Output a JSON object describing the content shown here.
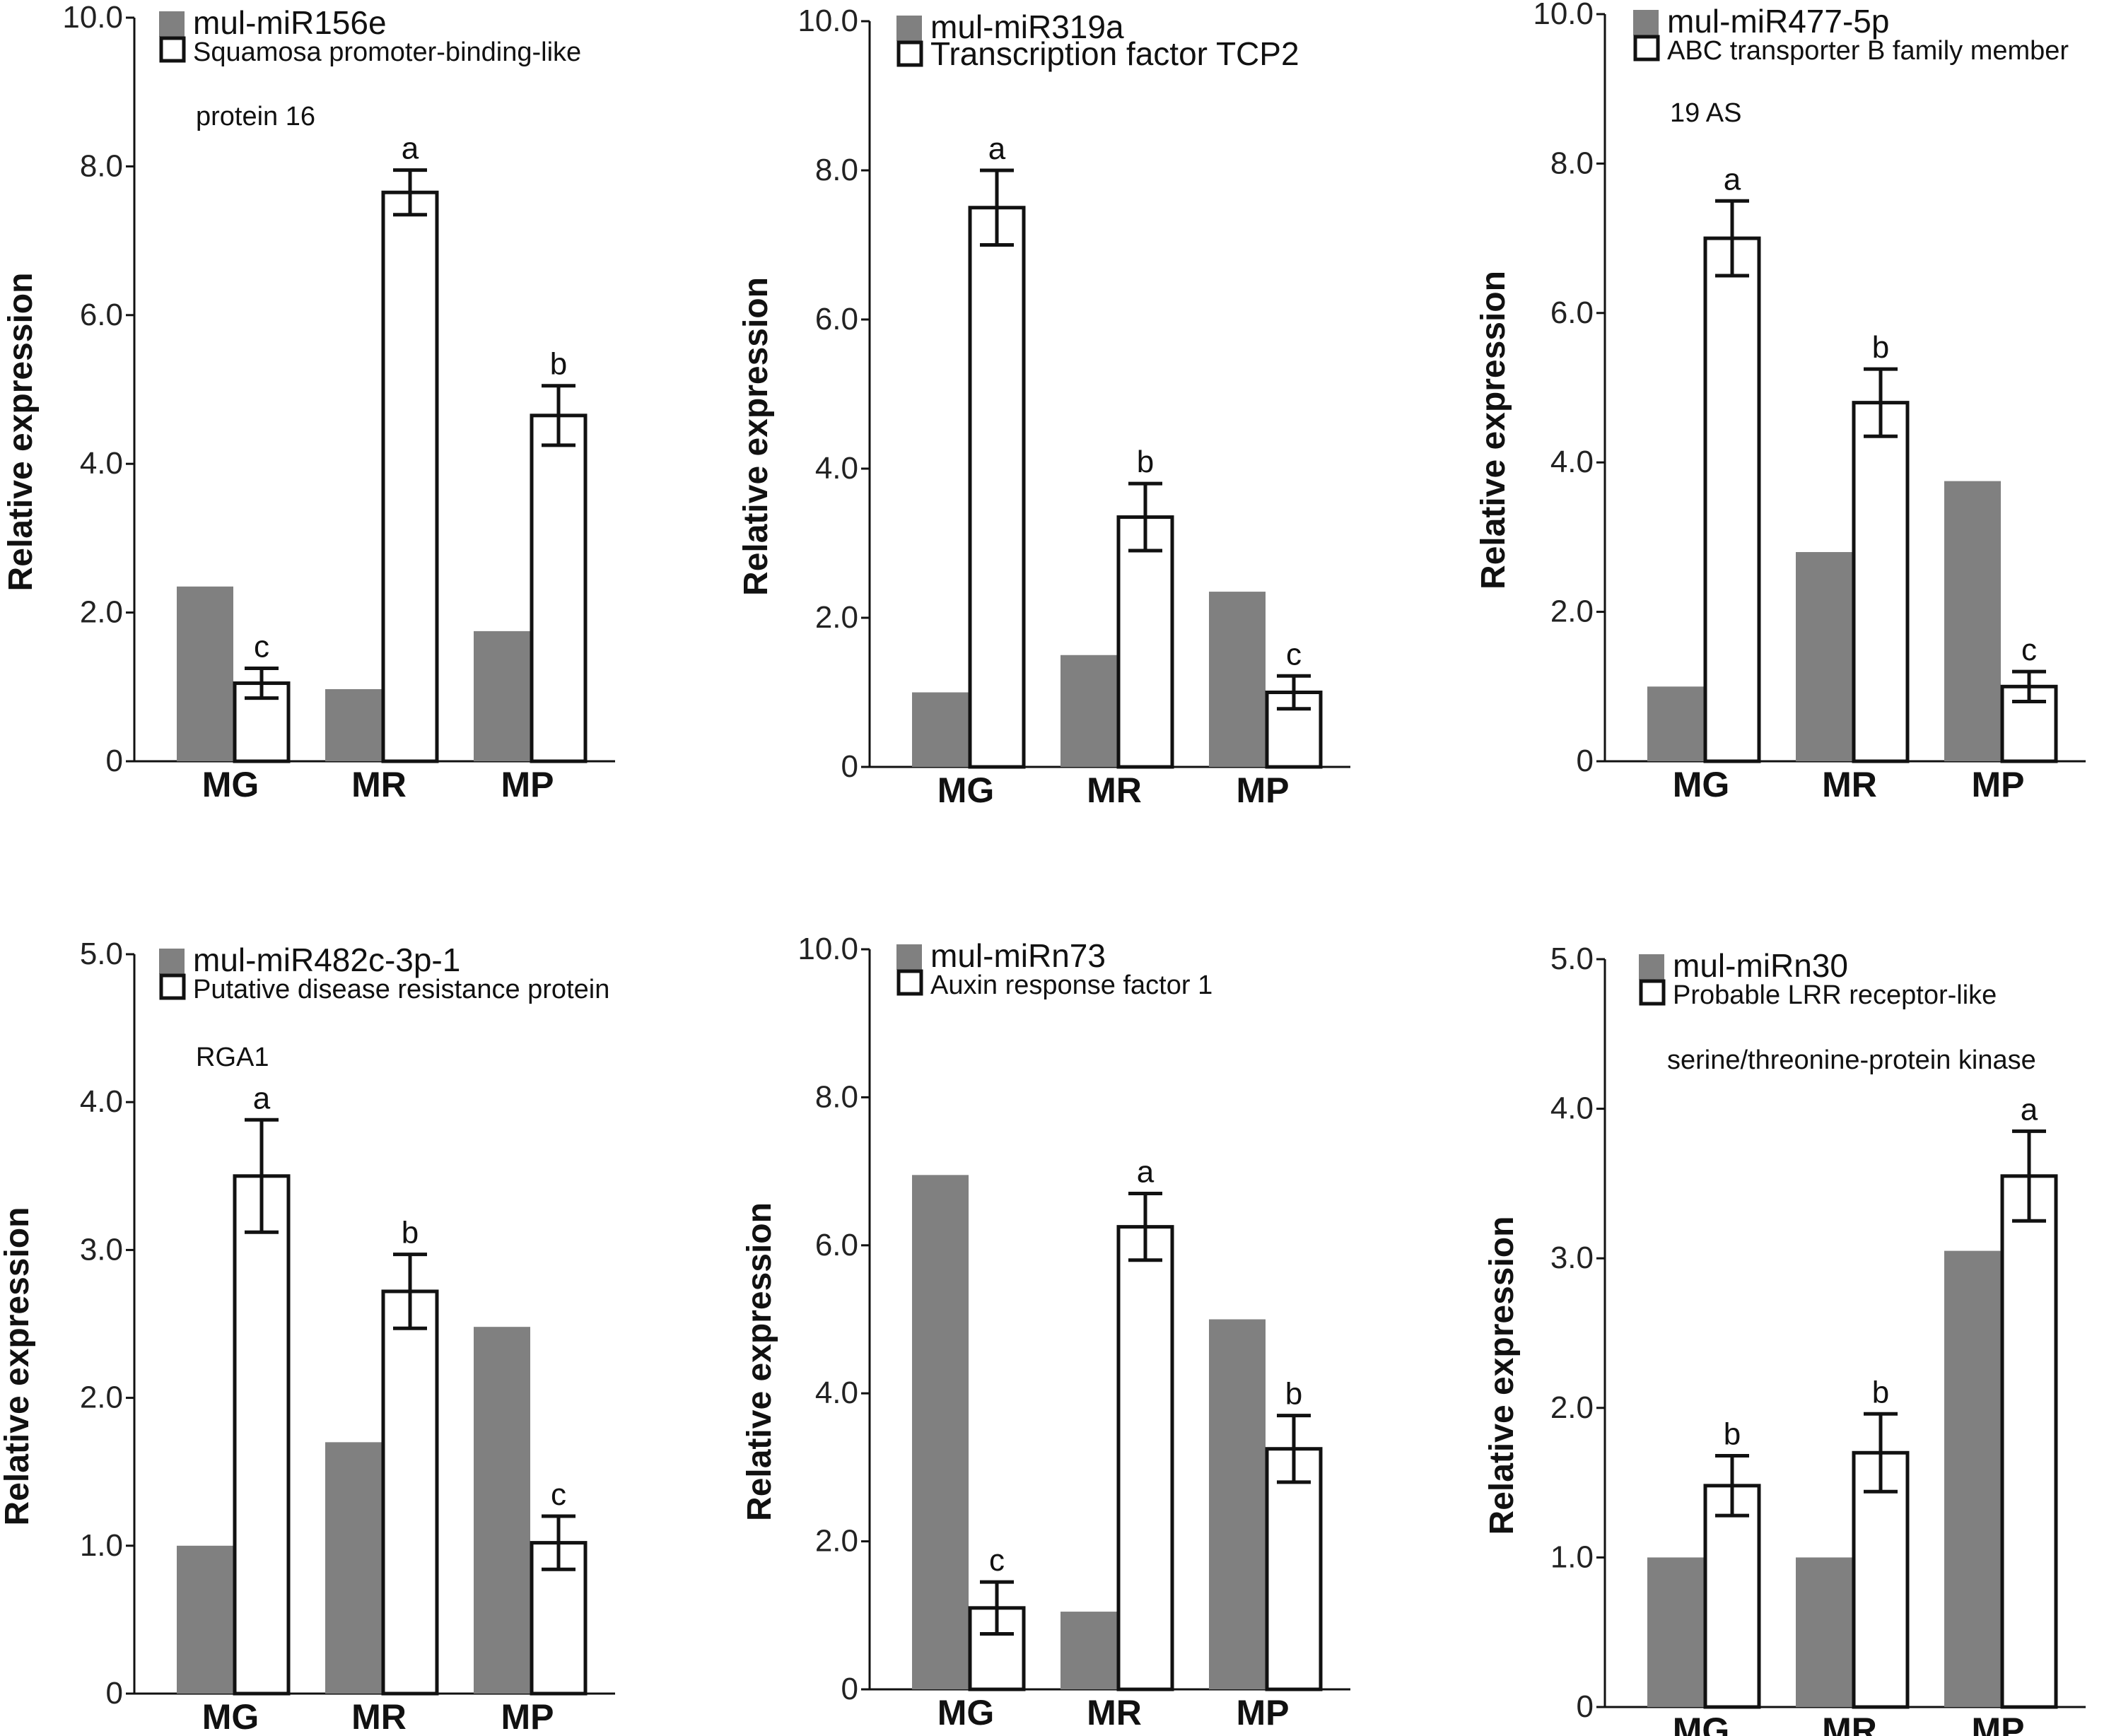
{
  "chart_data": [
    {
      "type": "bar",
      "ylabel": "Relative expression",
      "categories": [
        "MG",
        "MR",
        "MP"
      ],
      "ylim": [
        0,
        10
      ],
      "yticks": [
        "0",
        "2.0",
        "4.0",
        "6.0",
        "8.0",
        "10.0"
      ],
      "legend": {
        "mirna": "mul-miR156e",
        "target_line1": "Squamosa promoter-binding-like",
        "target_line2": "protein 16"
      },
      "series": [
        {
          "name": "mul-miR156e",
          "color": "#808080",
          "values": [
            2.35,
            0.97,
            1.75
          ]
        },
        {
          "name": "Squamosa promoter-binding-like protein 16",
          "color": "#ffffff",
          "values": [
            1.05,
            7.65,
            4.65
          ],
          "errors": [
            0.2,
            0.3,
            0.4
          ],
          "letters": [
            "c",
            "a",
            "b"
          ]
        }
      ]
    },
    {
      "type": "bar",
      "ylabel": "Relative expression",
      "categories": [
        "MG",
        "MR",
        "MP"
      ],
      "ylim": [
        0,
        10
      ],
      "yticks": [
        "0",
        "2.0",
        "4.0",
        "6.0",
        "8.0",
        "10.0"
      ],
      "legend": {
        "mirna": "mul-miR319a",
        "target_line1": "Transcription factor TCP2",
        "target_line2": ""
      },
      "series": [
        {
          "name": "mul-miR319a",
          "color": "#808080",
          "values": [
            1.0,
            1.5,
            2.35
          ]
        },
        {
          "name": "Transcription factor TCP2",
          "color": "#ffffff",
          "values": [
            7.5,
            3.35,
            1.0
          ],
          "errors": [
            0.5,
            0.45,
            0.22
          ],
          "letters": [
            "a",
            "b",
            "c"
          ]
        }
      ]
    },
    {
      "type": "bar",
      "ylabel": "Relative expression",
      "categories": [
        "MG",
        "MR",
        "MP"
      ],
      "ylim": [
        0,
        10
      ],
      "yticks": [
        "0",
        "2.0",
        "4.0",
        "6.0",
        "8.0",
        "10.0"
      ],
      "legend": {
        "mirna": "mul-miR477-5p",
        "target_line1": "ABC transporter B family member",
        "target_line2": "19 AS"
      },
      "series": [
        {
          "name": "mul-miR477-5p",
          "color": "#808080",
          "values": [
            1.0,
            2.8,
            3.75
          ]
        },
        {
          "name": "ABC transporter B family member 19 AS",
          "color": "#ffffff",
          "values": [
            7.0,
            4.8,
            1.0
          ],
          "errors": [
            0.5,
            0.45,
            0.2
          ],
          "letters": [
            "a",
            "b",
            "c"
          ]
        }
      ]
    },
    {
      "type": "bar",
      "ylabel": "Relative expression",
      "categories": [
        "MG",
        "MR",
        "MP"
      ],
      "ylim": [
        0,
        5
      ],
      "yticks": [
        "0",
        "1.0",
        "2.0",
        "3.0",
        "4.0",
        "5.0"
      ],
      "legend": {
        "mirna": "mul-miR482c-3p-1",
        "target_line1": "Putative disease resistance protein",
        "target_line2": "RGA1"
      },
      "series": [
        {
          "name": "mul-miR482c-3p-1",
          "color": "#808080",
          "values": [
            1.0,
            1.7,
            2.48
          ]
        },
        {
          "name": "Putative disease resistance protein RGA1",
          "color": "#ffffff",
          "values": [
            3.5,
            2.72,
            1.02
          ],
          "errors": [
            0.38,
            0.25,
            0.18
          ],
          "letters": [
            "a",
            "b",
            "c"
          ]
        }
      ]
    },
    {
      "type": "bar",
      "ylabel": "Relative expression",
      "categories": [
        "MG",
        "MR",
        "MP"
      ],
      "ylim": [
        0,
        10
      ],
      "yticks": [
        "0",
        "2.0",
        "4.0",
        "6.0",
        "8.0",
        "10.0"
      ],
      "legend": {
        "mirna": "mul-miRn73",
        "target_line1": "Auxin response factor 1",
        "target_line2": ""
      },
      "series": [
        {
          "name": "mul-miRn73",
          "color": "#808080",
          "values": [
            6.95,
            1.05,
            5.0
          ]
        },
        {
          "name": "Auxin response factor 1",
          "color": "#ffffff",
          "values": [
            1.1,
            6.25,
            3.25
          ],
          "errors": [
            0.35,
            0.45,
            0.45
          ],
          "letters": [
            "c",
            "a",
            "b"
          ]
        }
      ]
    },
    {
      "type": "bar",
      "ylabel": "Relative expression",
      "categories": [
        "MG",
        "MR",
        "MP"
      ],
      "ylim": [
        0,
        5
      ],
      "yticks": [
        "0",
        "1.0",
        "2.0",
        "3.0",
        "4.0",
        "5.0"
      ],
      "legend": {
        "mirna": "mul-miRn30",
        "target_line1": "Probable LRR receptor-like",
        "target_line2": "serine/threonine-protein kinase"
      },
      "series": [
        {
          "name": "mul-miRn30",
          "color": "#808080",
          "values": [
            1.0,
            1.0,
            3.05
          ]
        },
        {
          "name": "Probable LRR receptor-like serine/threonine-protein kinase",
          "color": "#ffffff",
          "values": [
            1.48,
            1.7,
            3.55
          ],
          "errors": [
            0.2,
            0.26,
            0.3
          ],
          "letters": [
            "b",
            "b",
            "a"
          ]
        }
      ]
    }
  ]
}
